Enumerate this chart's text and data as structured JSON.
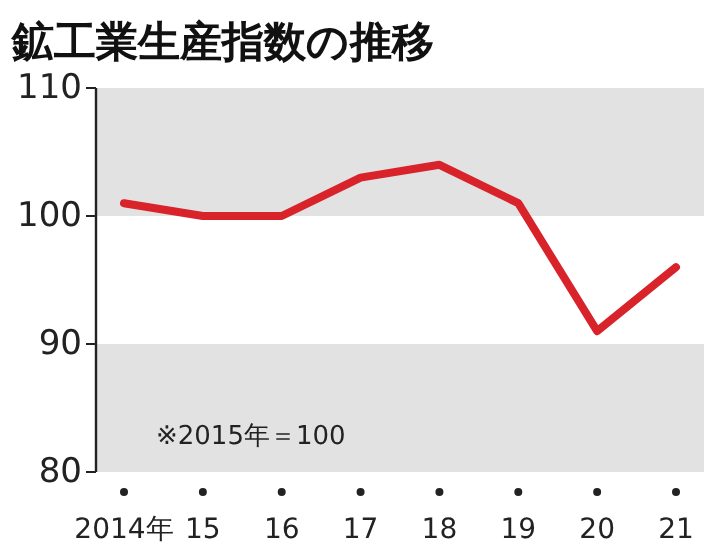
{
  "chart_data": {
    "type": "line",
    "title": "鉱工業生産指数の推移",
    "categories": [
      "2014年",
      "15",
      "16",
      "17",
      "18",
      "19",
      "20",
      "21"
    ],
    "series": [
      {
        "color": "#d9232a",
        "values": [
          101,
          100,
          100,
          103,
          104,
          101,
          91,
          96
        ]
      }
    ],
    "ylim": [
      80,
      110
    ],
    "yticks": [
      80,
      90,
      100,
      110
    ],
    "bands": [
      {
        "axis": "y",
        "from": 100,
        "to": 110,
        "color": "#e2e2e2"
      },
      {
        "axis": "y",
        "from": 80,
        "to": 90,
        "color": "#e2e2e2"
      }
    ],
    "annotations": [
      "※2015年＝100"
    ],
    "grid": false,
    "marker": "none",
    "line_style": "solid"
  }
}
